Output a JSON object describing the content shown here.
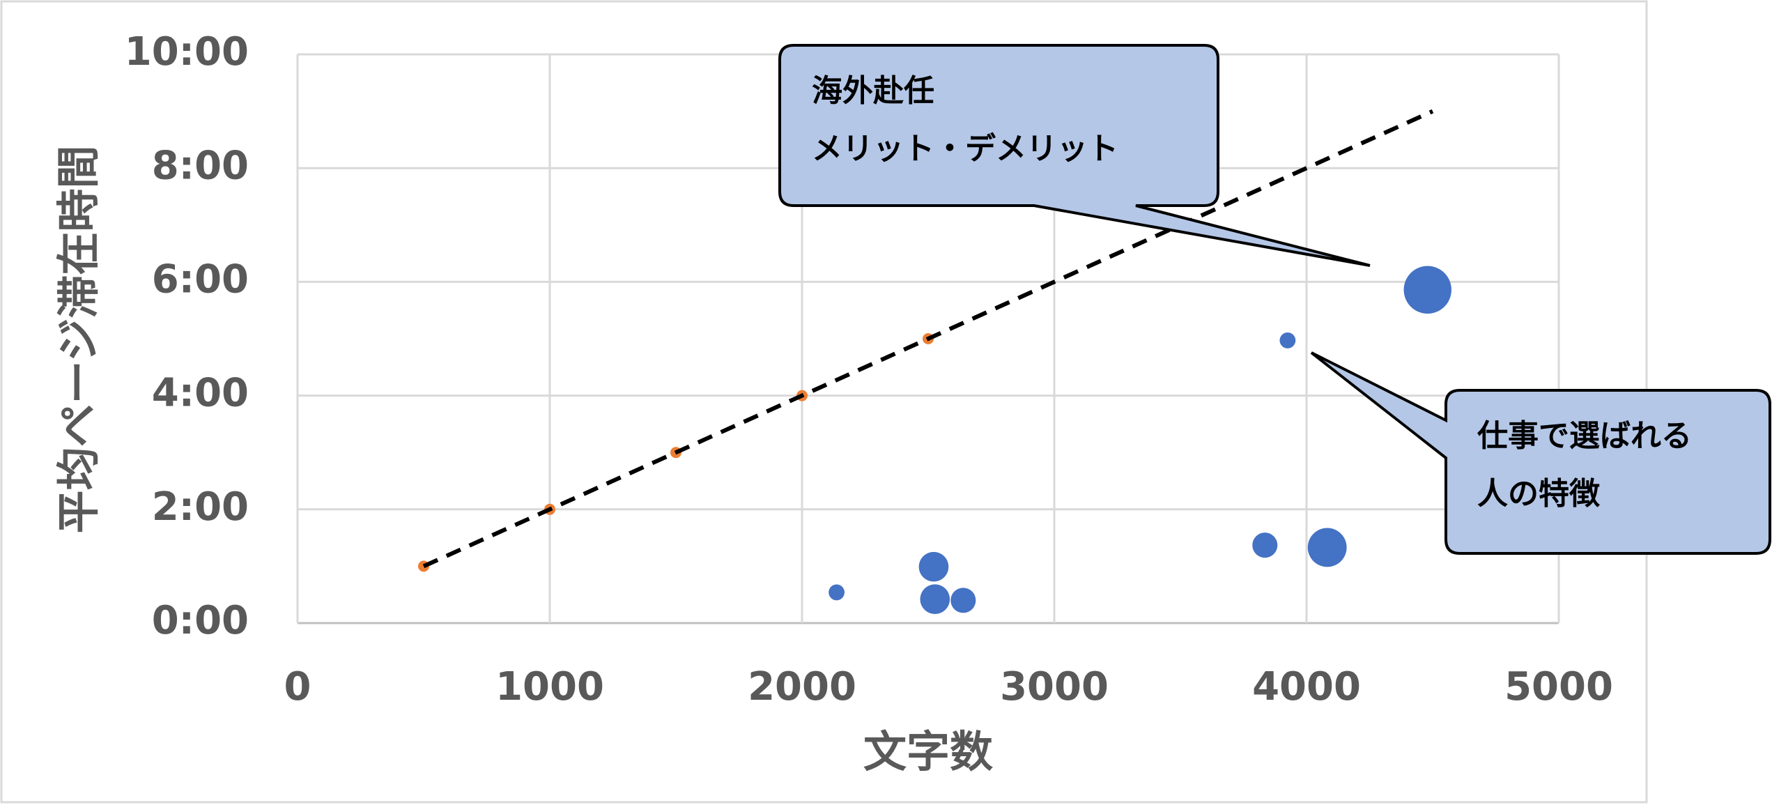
{
  "chart_data": {
    "type": "scatter",
    "x_label": "文字数",
    "y_label": "平均ページ滞在時間",
    "xlim": [
      0,
      5000
    ],
    "xticks": [
      0,
      1000,
      2000,
      3000,
      4000,
      5000
    ],
    "ylim": [
      0,
      10
    ],
    "yticks": [
      {
        "value": 0,
        "label": "0:00"
      },
      {
        "value": 2,
        "label": "2:00"
      },
      {
        "value": 4,
        "label": "4:00"
      },
      {
        "value": 6,
        "label": "6:00"
      },
      {
        "value": 8,
        "label": "8:00"
      },
      {
        "value": 10,
        "label": "10:00"
      }
    ],
    "grid": true,
    "series": [
      {
        "kind": "bubble",
        "color": "#4472c4",
        "x": [
          2137,
          2522,
          2527,
          2639,
          3835,
          4082,
          3925,
          4480
        ],
        "values": [
          0.54,
          0.99,
          0.42,
          0.4,
          1.37,
          1.33,
          4.97,
          5.86
        ],
        "sizes": [
          1,
          3.5,
          3.5,
          2.5,
          2.5,
          6,
          1,
          9
        ]
      },
      {
        "kind": "points",
        "color": "#ed7d31",
        "x": [
          500,
          1000,
          1500,
          2000,
          2500
        ],
        "values": [
          1,
          2,
          3,
          4,
          5
        ]
      },
      {
        "kind": "trendline",
        "color": "#000000",
        "dashed": true,
        "x": [
          500,
          4500
        ],
        "values": [
          1,
          9
        ]
      }
    ],
    "annotations": [
      {
        "lines": [
          "海外赴任",
          "メリット・デメリット"
        ]
      },
      {
        "lines": [
          "仕事で選ばれる",
          "人の特徴"
        ]
      }
    ]
  }
}
